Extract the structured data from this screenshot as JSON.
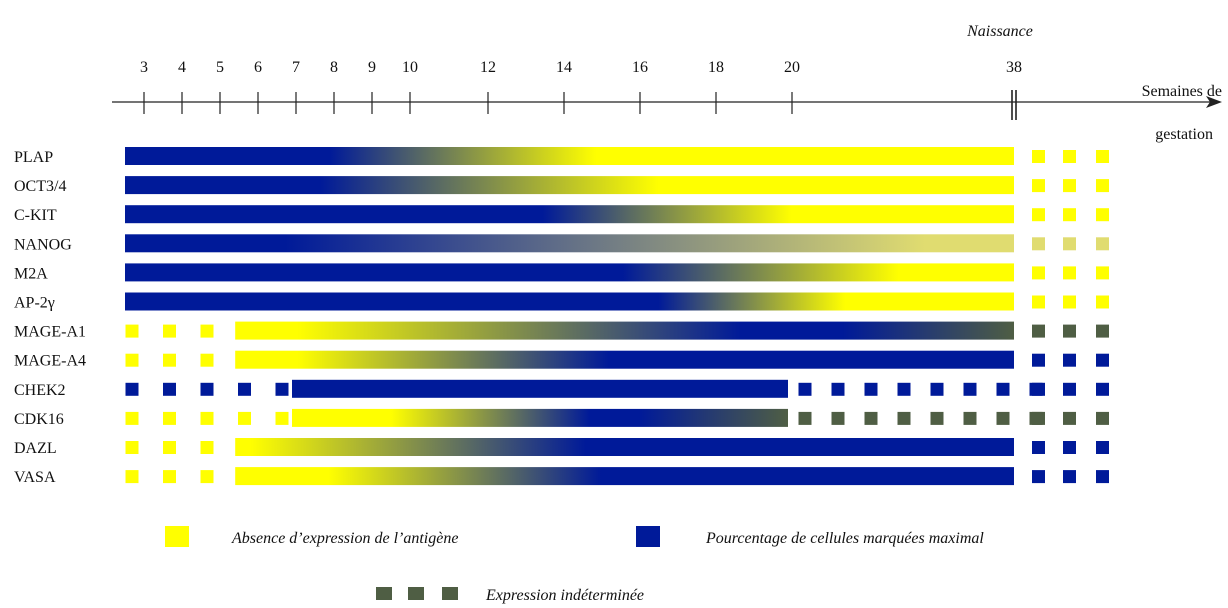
{
  "birth_label": "Naissance",
  "axis_title_line1": "Semaines de",
  "axis_title_line2": "gestation",
  "ticks": [
    "3",
    "4",
    "5",
    "6",
    "7",
    "8",
    "9",
    "10",
    "12",
    "14",
    "16",
    "18",
    "20",
    "38"
  ],
  "tick_weeks": [
    3,
    4,
    5,
    6,
    7,
    8,
    9,
    10,
    12,
    14,
    16,
    18,
    20,
    38
  ],
  "colors": {
    "absent": "#ffff00",
    "maximal": "#001a99",
    "undetermined": "#4f5e44",
    "nanog_faint": "#e0dc70"
  },
  "rows": [
    {
      "name": "PLAP",
      "segments": [
        {
          "type": "bar",
          "from": 3,
          "to": 38,
          "gradient": [
            [
              "maximal",
              0
            ],
            [
              "maximal",
              0.23
            ],
            [
              "absent",
              0.53
            ],
            [
              "absent",
              1
            ]
          ]
        }
      ],
      "post_birth": [
        "absent",
        "absent",
        "absent"
      ]
    },
    {
      "name": "OCT3/4",
      "segments": [
        {
          "type": "bar",
          "from": 3,
          "to": 38,
          "gradient": [
            [
              "maximal",
              0
            ],
            [
              "maximal",
              0.22
            ],
            [
              "absent",
              0.6
            ],
            [
              "absent",
              1
            ]
          ]
        }
      ],
      "post_birth": [
        "absent",
        "absent",
        "absent"
      ]
    },
    {
      "name": "C-KIT",
      "segments": [
        {
          "type": "bar",
          "from": 3,
          "to": 38,
          "gradient": [
            [
              "maximal",
              0
            ],
            [
              "maximal",
              0.47
            ],
            [
              "absent",
              0.75
            ],
            [
              "absent",
              1
            ]
          ]
        }
      ],
      "post_birth": [
        "absent",
        "absent",
        "absent"
      ]
    },
    {
      "name": "NANOG",
      "segments": [
        {
          "type": "bar",
          "from": 3,
          "to": 38,
          "gradient": [
            [
              "maximal",
              0
            ],
            [
              "maximal",
              0.18
            ],
            [
              "nanog_faint",
              0.9
            ],
            [
              "nanog_faint",
              1
            ]
          ]
        }
      ],
      "post_birth": [
        "nanog_faint",
        "nanog_faint",
        "nanog_faint"
      ]
    },
    {
      "name": "M2A",
      "segments": [
        {
          "type": "bar",
          "from": 3,
          "to": 38,
          "gradient": [
            [
              "maximal",
              0
            ],
            [
              "maximal",
              0.56
            ],
            [
              "absent",
              0.87
            ],
            [
              "absent",
              1
            ]
          ]
        }
      ],
      "post_birth": [
        "absent",
        "absent",
        "absent"
      ]
    },
    {
      "name": "AP-2γ",
      "segments": [
        {
          "type": "bar",
          "from": 3,
          "to": 38,
          "gradient": [
            [
              "maximal",
              0
            ],
            [
              "maximal",
              0.6
            ],
            [
              "absent",
              0.81
            ],
            [
              "absent",
              1
            ]
          ]
        }
      ],
      "post_birth": [
        "absent",
        "absent",
        "absent"
      ]
    },
    {
      "name": "MAGE-A1",
      "segments": [
        {
          "type": "dots",
          "weeks": [
            3,
            4,
            5
          ],
          "color": "absent"
        },
        {
          "type": "bar",
          "from": 5.4,
          "to": 38,
          "gradient": [
            [
              "absent",
              0
            ],
            [
              "absent",
              0.08
            ],
            [
              "maximal",
              0.65
            ],
            [
              "maximal",
              0.78
            ],
            [
              "undetermined",
              1
            ]
          ]
        }
      ],
      "post_birth": [
        "undetermined",
        "undetermined",
        "undetermined"
      ]
    },
    {
      "name": "MAGE-A4",
      "segments": [
        {
          "type": "dots",
          "weeks": [
            3,
            4,
            5
          ],
          "color": "absent"
        },
        {
          "type": "bar",
          "from": 5.4,
          "to": 38,
          "gradient": [
            [
              "absent",
              0
            ],
            [
              "absent",
              0.08
            ],
            [
              "maximal",
              0.48
            ],
            [
              "maximal",
              1
            ]
          ]
        }
      ],
      "post_birth": [
        "maximal",
        "maximal",
        "maximal"
      ]
    },
    {
      "name": "CHEK2",
      "segments": [
        {
          "type": "dots",
          "weeks": [
            3,
            4,
            5,
            6,
            7
          ],
          "color": "maximal"
        },
        {
          "type": "bar",
          "from": 7,
          "to": 20,
          "gradient": [
            [
              "maximal",
              0
            ],
            [
              "maximal",
              1
            ]
          ]
        },
        {
          "type": "dots",
          "weeks": [
            20.4,
            21.4,
            22.4,
            23.4,
            24.4,
            25.4,
            26.4,
            27.4
          ],
          "color": "maximal"
        }
      ],
      "post_birth": [
        "maximal",
        "maximal",
        "maximal"
      ]
    },
    {
      "name": "CDK16",
      "segments": [
        {
          "type": "dots",
          "weeks": [
            3,
            4,
            5,
            6,
            7
          ],
          "color": "absent"
        },
        {
          "type": "bar",
          "from": 7,
          "to": 20,
          "gradient": [
            [
              "absent",
              0
            ],
            [
              "absent",
              0.2
            ],
            [
              "maximal",
              0.6
            ],
            [
              "maximal",
              0.7
            ],
            [
              "undetermined",
              1
            ]
          ]
        },
        {
          "type": "dots",
          "weeks": [
            20.4,
            21.4,
            22.4,
            23.4,
            24.4,
            25.4,
            26.4,
            27.4
          ],
          "color": "undetermined"
        }
      ],
      "post_birth": [
        "undetermined",
        "undetermined",
        "undetermined"
      ]
    },
    {
      "name": "DAZL",
      "segments": [
        {
          "type": "dots",
          "weeks": [
            3,
            4,
            5
          ],
          "color": "absent"
        },
        {
          "type": "bar",
          "from": 5.4,
          "to": 38,
          "gradient": [
            [
              "absent",
              0
            ],
            [
              "absent",
              0.02
            ],
            [
              "maximal",
              0.45
            ],
            [
              "maximal",
              1
            ]
          ]
        }
      ],
      "post_birth": [
        "maximal",
        "maximal",
        "maximal"
      ]
    },
    {
      "name": "VASA",
      "segments": [
        {
          "type": "dots",
          "weeks": [
            3,
            4,
            5
          ],
          "color": "absent"
        },
        {
          "type": "bar",
          "from": 5.4,
          "to": 38,
          "gradient": [
            [
              "absent",
              0
            ],
            [
              "absent",
              0.12
            ],
            [
              "maximal",
              0.47
            ],
            [
              "maximal",
              1
            ]
          ]
        }
      ],
      "post_birth": [
        "maximal",
        "maximal",
        "maximal"
      ]
    }
  ],
  "legend": {
    "absent_label": "Absence d’expression de l’antigène",
    "maximal_label": "Pourcentage de cellules marquées maximal",
    "undetermined_label": "Expression indéterminée"
  }
}
